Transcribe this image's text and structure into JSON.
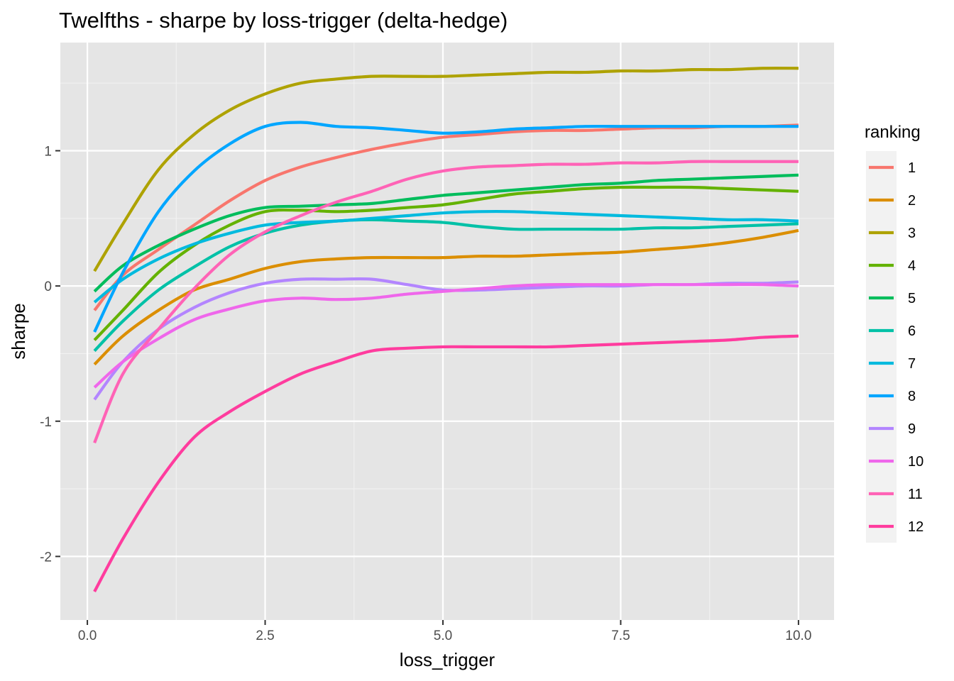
{
  "chart_data": {
    "type": "line",
    "title": "Twelfths - sharpe by loss-trigger (delta-hedge)",
    "xlabel": "loss_trigger",
    "ylabel": "sharpe",
    "xlim": [
      -0.38,
      10.5
    ],
    "ylim": [
      -2.47,
      1.8
    ],
    "x_ticks": [
      0.0,
      2.5,
      5.0,
      7.5,
      10.0
    ],
    "x_tick_labels": [
      "0.0",
      "2.5",
      "5.0",
      "7.5",
      "10.0"
    ],
    "y_ticks": [
      -2,
      -1,
      0,
      1
    ],
    "y_tick_labels": [
      "-2",
      "-1",
      "0",
      "1"
    ],
    "grid": true,
    "legend": {
      "title": "ranking",
      "position": "right"
    },
    "x": [
      0.1,
      0.5,
      1.0,
      1.5,
      2.0,
      2.5,
      3.0,
      3.5,
      4.0,
      4.5,
      5.0,
      5.5,
      6.0,
      6.5,
      7.0,
      7.5,
      8.0,
      8.5,
      9.0,
      9.5,
      10.0
    ],
    "series": [
      {
        "name": "1",
        "color": "#F8766D",
        "values": [
          -0.18,
          0.08,
          0.27,
          0.45,
          0.63,
          0.78,
          0.88,
          0.95,
          1.01,
          1.06,
          1.1,
          1.12,
          1.14,
          1.15,
          1.15,
          1.16,
          1.17,
          1.17,
          1.18,
          1.18,
          1.19
        ]
      },
      {
        "name": "2",
        "color": "#DB8E00",
        "values": [
          -0.58,
          -0.37,
          -0.18,
          -0.03,
          0.05,
          0.13,
          0.18,
          0.2,
          0.21,
          0.21,
          0.21,
          0.22,
          0.22,
          0.23,
          0.24,
          0.25,
          0.27,
          0.29,
          0.32,
          0.36,
          0.41
        ]
      },
      {
        "name": "3",
        "color": "#AEA200",
        "values": [
          0.11,
          0.46,
          0.86,
          1.12,
          1.3,
          1.42,
          1.5,
          1.53,
          1.55,
          1.55,
          1.55,
          1.56,
          1.57,
          1.58,
          1.58,
          1.59,
          1.59,
          1.6,
          1.6,
          1.61,
          1.61
        ]
      },
      {
        "name": "4",
        "color": "#64B200",
        "values": [
          -0.4,
          -0.18,
          0.1,
          0.3,
          0.45,
          0.55,
          0.56,
          0.55,
          0.56,
          0.58,
          0.6,
          0.64,
          0.68,
          0.7,
          0.72,
          0.73,
          0.73,
          0.73,
          0.72,
          0.71,
          0.7
        ]
      },
      {
        "name": "5",
        "color": "#00BD5C",
        "values": [
          -0.04,
          0.15,
          0.3,
          0.42,
          0.52,
          0.58,
          0.59,
          0.6,
          0.61,
          0.64,
          0.67,
          0.69,
          0.71,
          0.73,
          0.75,
          0.76,
          0.78,
          0.79,
          0.8,
          0.81,
          0.82
        ]
      },
      {
        "name": "6",
        "color": "#00C1A7",
        "values": [
          -0.48,
          -0.26,
          -0.03,
          0.14,
          0.29,
          0.39,
          0.45,
          0.48,
          0.49,
          0.48,
          0.47,
          0.44,
          0.42,
          0.42,
          0.42,
          0.42,
          0.43,
          0.43,
          0.44,
          0.45,
          0.46
        ]
      },
      {
        "name": "7",
        "color": "#00BADE",
        "values": [
          -0.12,
          0.05,
          0.2,
          0.31,
          0.39,
          0.45,
          0.47,
          0.48,
          0.5,
          0.52,
          0.54,
          0.55,
          0.55,
          0.54,
          0.53,
          0.52,
          0.51,
          0.5,
          0.49,
          0.49,
          0.48
        ]
      },
      {
        "name": "8",
        "color": "#00A6FF",
        "values": [
          -0.34,
          0.1,
          0.55,
          0.85,
          1.05,
          1.18,
          1.21,
          1.18,
          1.17,
          1.15,
          1.13,
          1.14,
          1.16,
          1.17,
          1.18,
          1.18,
          1.18,
          1.18,
          1.18,
          1.18,
          1.18
        ]
      },
      {
        "name": "9",
        "color": "#B385FF",
        "values": [
          -0.84,
          -0.56,
          -0.32,
          -0.16,
          -0.05,
          0.02,
          0.05,
          0.05,
          0.05,
          0.01,
          -0.03,
          -0.03,
          -0.02,
          -0.01,
          0.0,
          0.0,
          0.01,
          0.01,
          0.02,
          0.02,
          0.03
        ]
      },
      {
        "name": "10",
        "color": "#EF67EB",
        "values": [
          -0.75,
          -0.56,
          -0.39,
          -0.25,
          -0.17,
          -0.11,
          -0.09,
          -0.1,
          -0.09,
          -0.06,
          -0.04,
          -0.02,
          0.0,
          0.01,
          0.01,
          0.01,
          0.01,
          0.01,
          0.01,
          0.01,
          0.0
        ]
      },
      {
        "name": "11",
        "color": "#FF63B6",
        "values": [
          -1.16,
          -0.65,
          -0.32,
          -0.02,
          0.23,
          0.4,
          0.52,
          0.62,
          0.7,
          0.79,
          0.85,
          0.88,
          0.89,
          0.9,
          0.9,
          0.91,
          0.91,
          0.92,
          0.92,
          0.92,
          0.92
        ]
      },
      {
        "name": "12",
        "color": "#FF3C9E",
        "values": [
          -2.26,
          -1.87,
          -1.45,
          -1.12,
          -0.93,
          -0.78,
          -0.65,
          -0.56,
          -0.48,
          -0.46,
          -0.45,
          -0.45,
          -0.45,
          -0.45,
          -0.44,
          -0.43,
          -0.42,
          -0.41,
          -0.4,
          -0.38,
          -0.37
        ]
      }
    ]
  },
  "colors": {
    "panel_background": "#e5e5e5",
    "grid_major": "#ffffff",
    "grid_minor": "#f2f2f2",
    "tick_text": "#4d4d4d",
    "tick_mark": "#333333"
  }
}
